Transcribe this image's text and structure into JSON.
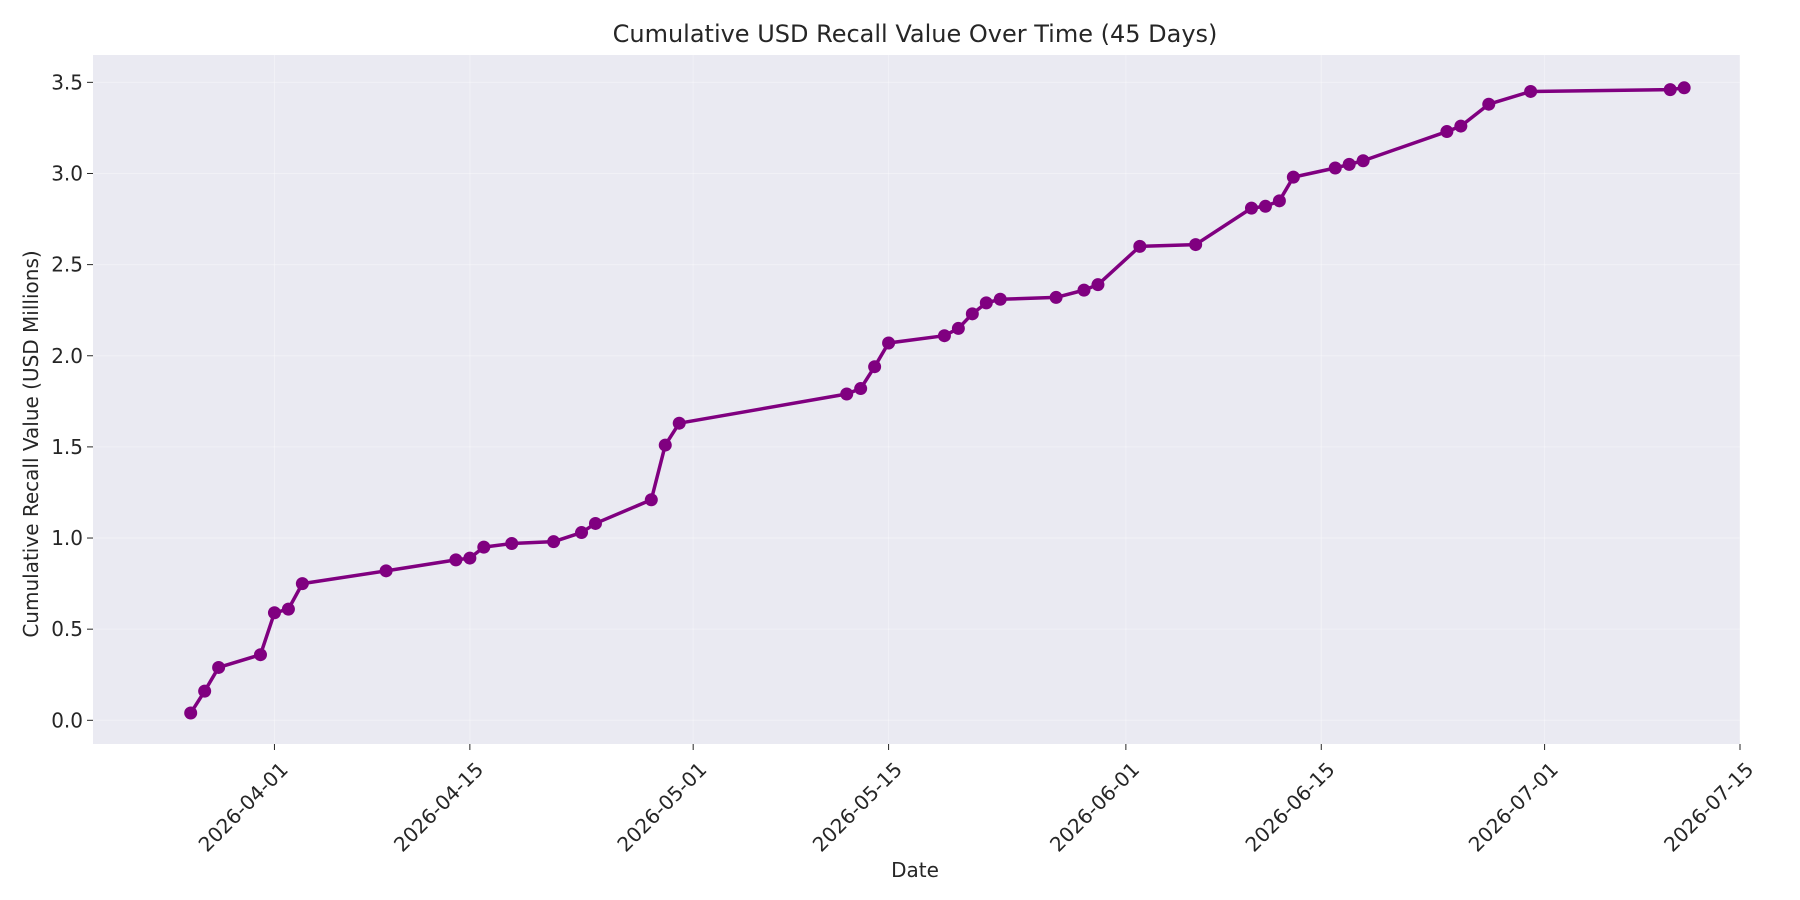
{
  "chart_data": {
    "type": "line",
    "title": "Cumulative USD Recall Value Over Time (45 Days)",
    "xlabel": "Date",
    "ylabel": "Cumulative Recall Value (USD Millions)",
    "x_axis_type": "date",
    "xlim": [
      "2026-03-19",
      "2026-07-15"
    ],
    "ylim": [
      -0.13,
      3.65
    ],
    "x_ticks": [
      "2026-04-01",
      "2026-04-15",
      "2026-05-01",
      "2026-05-15",
      "2026-06-01",
      "2026-06-15",
      "2026-07-01",
      "2026-07-15"
    ],
    "y_ticks": [
      "0.0",
      "0.5",
      "1.0",
      "1.5",
      "2.0",
      "2.5",
      "3.0",
      "3.5"
    ],
    "grid": true,
    "colors": {
      "line": "#800080",
      "plot_background": "#EAEAF2",
      "grid": "#ffffff"
    },
    "series": [
      {
        "x": [
          "2026-03-26",
          "2026-03-27",
          "2026-03-28",
          "2026-03-31",
          "2026-04-01",
          "2026-04-02",
          "2026-04-03",
          "2026-04-09",
          "2026-04-14",
          "2026-04-15",
          "2026-04-16",
          "2026-04-18",
          "2026-04-21",
          "2026-04-23",
          "2026-04-24",
          "2026-04-28",
          "2026-04-29",
          "2026-04-30",
          "2026-05-12",
          "2026-05-13",
          "2026-05-14",
          "2026-05-15",
          "2026-05-19",
          "2026-05-20",
          "2026-05-21",
          "2026-05-22",
          "2026-05-23",
          "2026-05-27",
          "2026-05-29",
          "2026-05-30",
          "2026-06-02",
          "2026-06-06",
          "2026-06-10",
          "2026-06-11",
          "2026-06-12",
          "2026-06-13",
          "2026-06-16",
          "2026-06-17",
          "2026-06-18",
          "2026-06-24",
          "2026-06-25",
          "2026-06-27",
          "2026-06-30",
          "2026-07-10",
          "2026-07-11"
        ],
        "values": [
          0.04,
          0.16,
          0.29,
          0.36,
          0.59,
          0.61,
          0.75,
          0.82,
          0.88,
          0.89,
          0.95,
          0.97,
          0.98,
          1.03,
          1.08,
          1.21,
          1.51,
          1.63,
          1.79,
          1.82,
          1.94,
          2.07,
          2.11,
          2.15,
          2.23,
          2.29,
          2.31,
          2.32,
          2.36,
          2.39,
          2.6,
          2.61,
          2.81,
          2.82,
          2.85,
          2.98,
          3.03,
          3.05,
          3.07,
          3.23,
          3.26,
          3.38,
          3.45,
          3.46,
          3.47
        ]
      }
    ]
  }
}
